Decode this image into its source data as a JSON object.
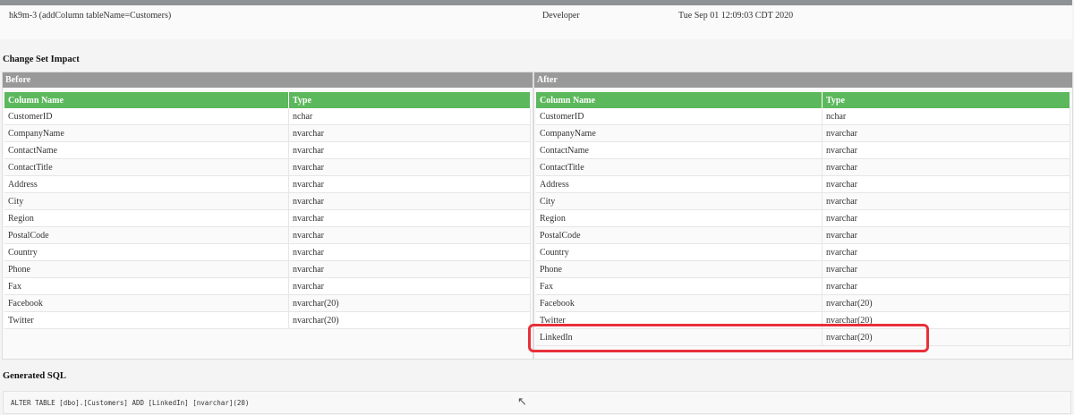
{
  "changeset": {
    "id": "hk9m-3 (addColumn tableName=Customers)",
    "author": "Developer",
    "date": "Tue Sep 01 12:09:03 CDT 2020"
  },
  "impact": {
    "title": "Change Set Impact",
    "before": {
      "label": "Before",
      "headers": [
        "Column Name",
        "Type"
      ],
      "rows": [
        [
          "CustomerID",
          "nchar"
        ],
        [
          "CompanyName",
          "nvarchar"
        ],
        [
          "ContactName",
          "nvarchar"
        ],
        [
          "ContactTitle",
          "nvarchar"
        ],
        [
          "Address",
          "nvarchar"
        ],
        [
          "City",
          "nvarchar"
        ],
        [
          "Region",
          "nvarchar"
        ],
        [
          "PostalCode",
          "nvarchar"
        ],
        [
          "Country",
          "nvarchar"
        ],
        [
          "Phone",
          "nvarchar"
        ],
        [
          "Fax",
          "nvarchar"
        ],
        [
          "Facebook",
          "nvarchar(20)"
        ],
        [
          "Twitter",
          "nvarchar(20)"
        ]
      ]
    },
    "after": {
      "label": "After",
      "headers": [
        "Column Name",
        "Type"
      ],
      "rows": [
        [
          "CustomerID",
          "nchar"
        ],
        [
          "CompanyName",
          "nvarchar"
        ],
        [
          "ContactName",
          "nvarchar"
        ],
        [
          "ContactTitle",
          "nvarchar"
        ],
        [
          "Address",
          "nvarchar"
        ],
        [
          "City",
          "nvarchar"
        ],
        [
          "Region",
          "nvarchar"
        ],
        [
          "PostalCode",
          "nvarchar"
        ],
        [
          "Country",
          "nvarchar"
        ],
        [
          "Phone",
          "nvarchar"
        ],
        [
          "Fax",
          "nvarchar"
        ],
        [
          "Facebook",
          "nvarchar(20)"
        ],
        [
          "Twitter",
          "nvarchar(20)"
        ],
        [
          "LinkedIn",
          "nvarchar(20)"
        ]
      ]
    },
    "highlight_color": "#e8303a"
  },
  "sql": {
    "title": "Generated SQL",
    "statement": "ALTER TABLE [dbo].[Customers] ADD [LinkedIn] [nvarchar](20)"
  }
}
